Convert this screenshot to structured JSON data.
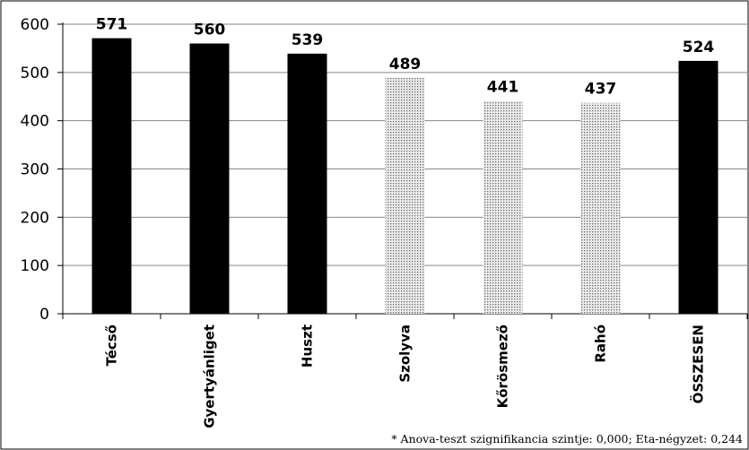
{
  "chart_data": {
    "type": "bar",
    "categories": [
      "Técső",
      "Gyertyánliget",
      "Huszt",
      "Szolyva",
      "Kőrösmező",
      "Rahó",
      "ÖSSZESEN"
    ],
    "values": [
      571,
      560,
      539,
      489,
      441,
      437,
      524
    ],
    "patterns": [
      "solid",
      "solid",
      "solid",
      "dotted",
      "dotted",
      "dotted",
      "solid"
    ],
    "ylim": [
      0,
      600
    ],
    "yticks": [
      "0",
      "100",
      "200",
      "300",
      "400",
      "500",
      "600"
    ],
    "grid": "horizontal",
    "xlabel": "",
    "ylabel": "",
    "title": ""
  },
  "footnote": "* Anova-teszt szignifikancia szintje: 0,000; Eta-négyzet: 0,244",
  "colors": {
    "bar_solid": "#000000",
    "bar_dotted_fill": "#ececec",
    "bar_dotted_dot": "#6a6a6a",
    "grid": "#868686",
    "frame": "#000000"
  }
}
